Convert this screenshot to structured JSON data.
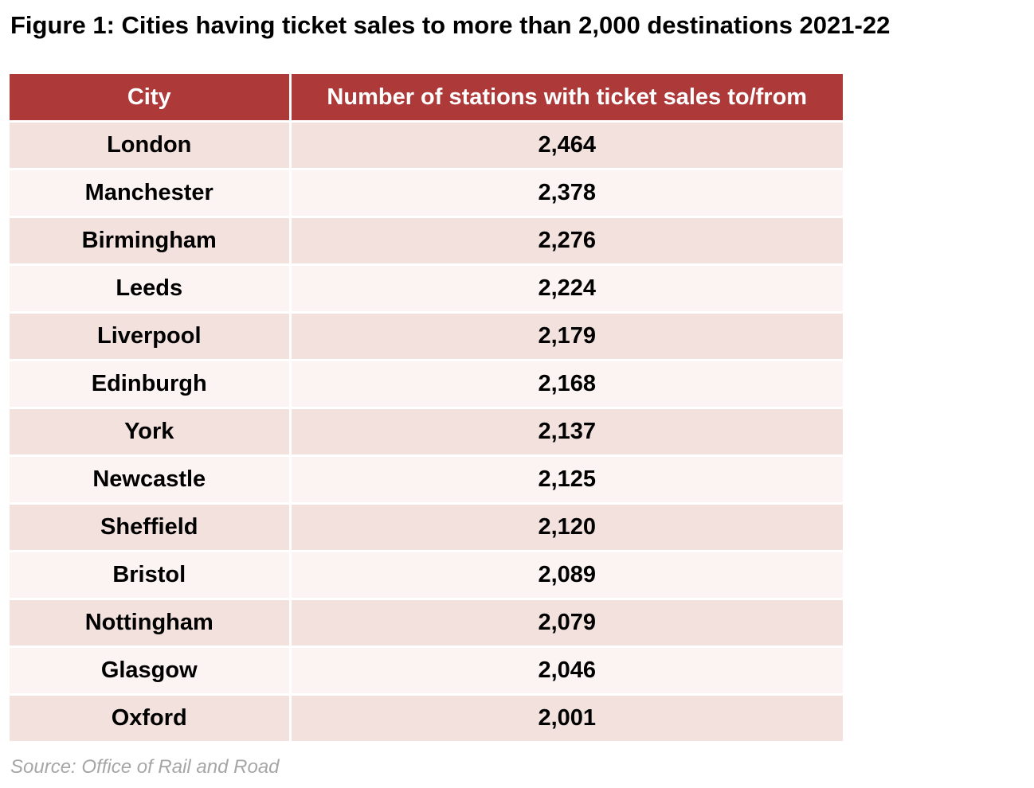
{
  "chart_data": {
    "type": "table",
    "title": "Figure 1: Cities having ticket sales to more than 2,000 destinations 2021-22",
    "columns": [
      "City",
      "Number of stations with ticket sales to/from"
    ],
    "rows": [
      {
        "city": "London",
        "value": "2,464"
      },
      {
        "city": "Manchester",
        "value": "2,378"
      },
      {
        "city": "Birmingham",
        "value": "2,276"
      },
      {
        "city": "Leeds",
        "value": "2,224"
      },
      {
        "city": "Liverpool",
        "value": "2,179"
      },
      {
        "city": "Edinburgh",
        "value": "2,168"
      },
      {
        "city": "York",
        "value": "2,137"
      },
      {
        "city": "Newcastle",
        "value": "2,125"
      },
      {
        "city": "Sheffield",
        "value": "2,120"
      },
      {
        "city": "Bristol",
        "value": "2,089"
      },
      {
        "city": "Nottingham",
        "value": "2,079"
      },
      {
        "city": "Glasgow",
        "value": "2,046"
      },
      {
        "city": "Oxford",
        "value": "2,001"
      }
    ],
    "source": "Source: Office of Rail and Road"
  },
  "colors": {
    "header_bg": "#ae3939",
    "row_odd_bg": "#f2e1dc",
    "row_even_bg": "#fbf4f2"
  }
}
